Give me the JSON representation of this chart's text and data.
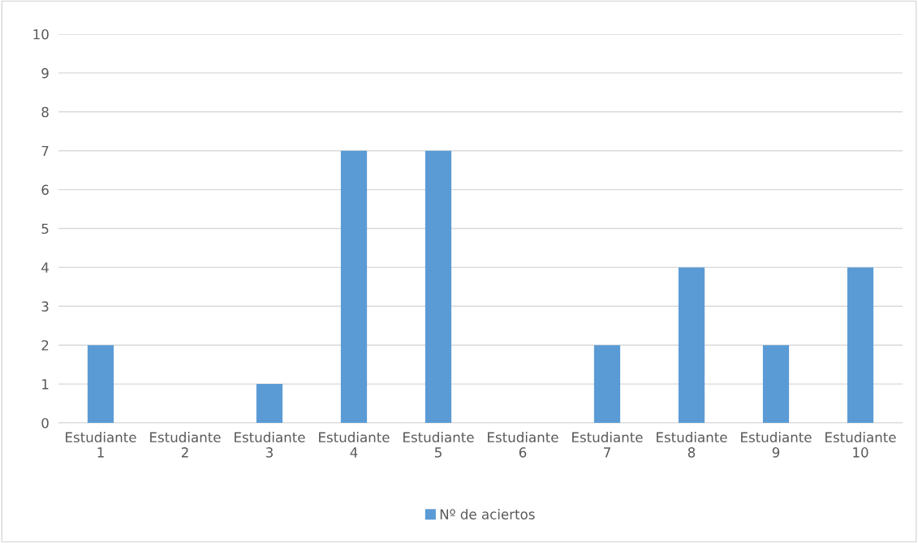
{
  "chart_data": {
    "type": "bar",
    "categories": [
      "Estudiante 1",
      "Estudiante 2",
      "Estudiante 3",
      "Estudiante 4",
      "Estudiante 5",
      "Estudiante 6",
      "Estudiante 7",
      "Estudiante 8",
      "Estudiante 9",
      "Estudiante 10"
    ],
    "series": [
      {
        "name": "Nº de aciertos",
        "color": "#5b9bd5",
        "values": [
          2,
          0,
          1,
          7,
          7,
          0,
          2,
          4,
          2,
          4
        ]
      }
    ],
    "ylim": [
      0,
      10
    ],
    "yticks": [
      0,
      1,
      2,
      3,
      4,
      5,
      6,
      7,
      8,
      9,
      10
    ],
    "grid": "y",
    "legend": "bottom"
  }
}
